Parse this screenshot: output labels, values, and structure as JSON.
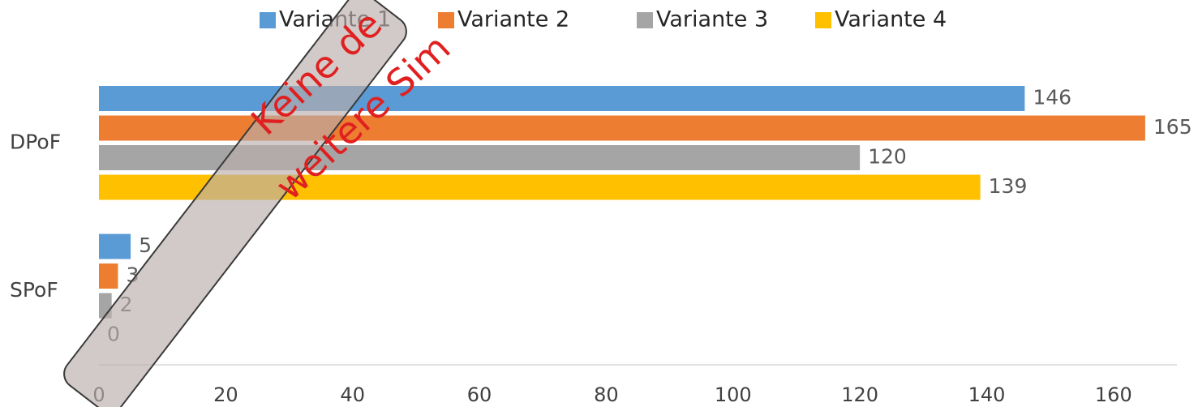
{
  "chart_data": {
    "type": "barh",
    "categories": [
      "DPoF",
      "SPoF"
    ],
    "series": [
      {
        "name": "Variante 1",
        "color": "#5b9bd5",
        "values": [
          146,
          5
        ]
      },
      {
        "name": "Variante 2",
        "color": "#ed7d31",
        "values": [
          165,
          3
        ]
      },
      {
        "name": "Variante 3",
        "color": "#a5a5a5",
        "values": [
          120,
          2
        ]
      },
      {
        "name": "Variante 4",
        "color": "#ffc000",
        "values": [
          139,
          0
        ]
      }
    ],
    "xlim": [
      0,
      170
    ],
    "xticks": [
      0,
      20,
      40,
      60,
      80,
      100,
      120,
      140,
      160
    ],
    "legend": "top",
    "annotations": [
      "Keine de",
      "weitere Sim"
    ]
  }
}
